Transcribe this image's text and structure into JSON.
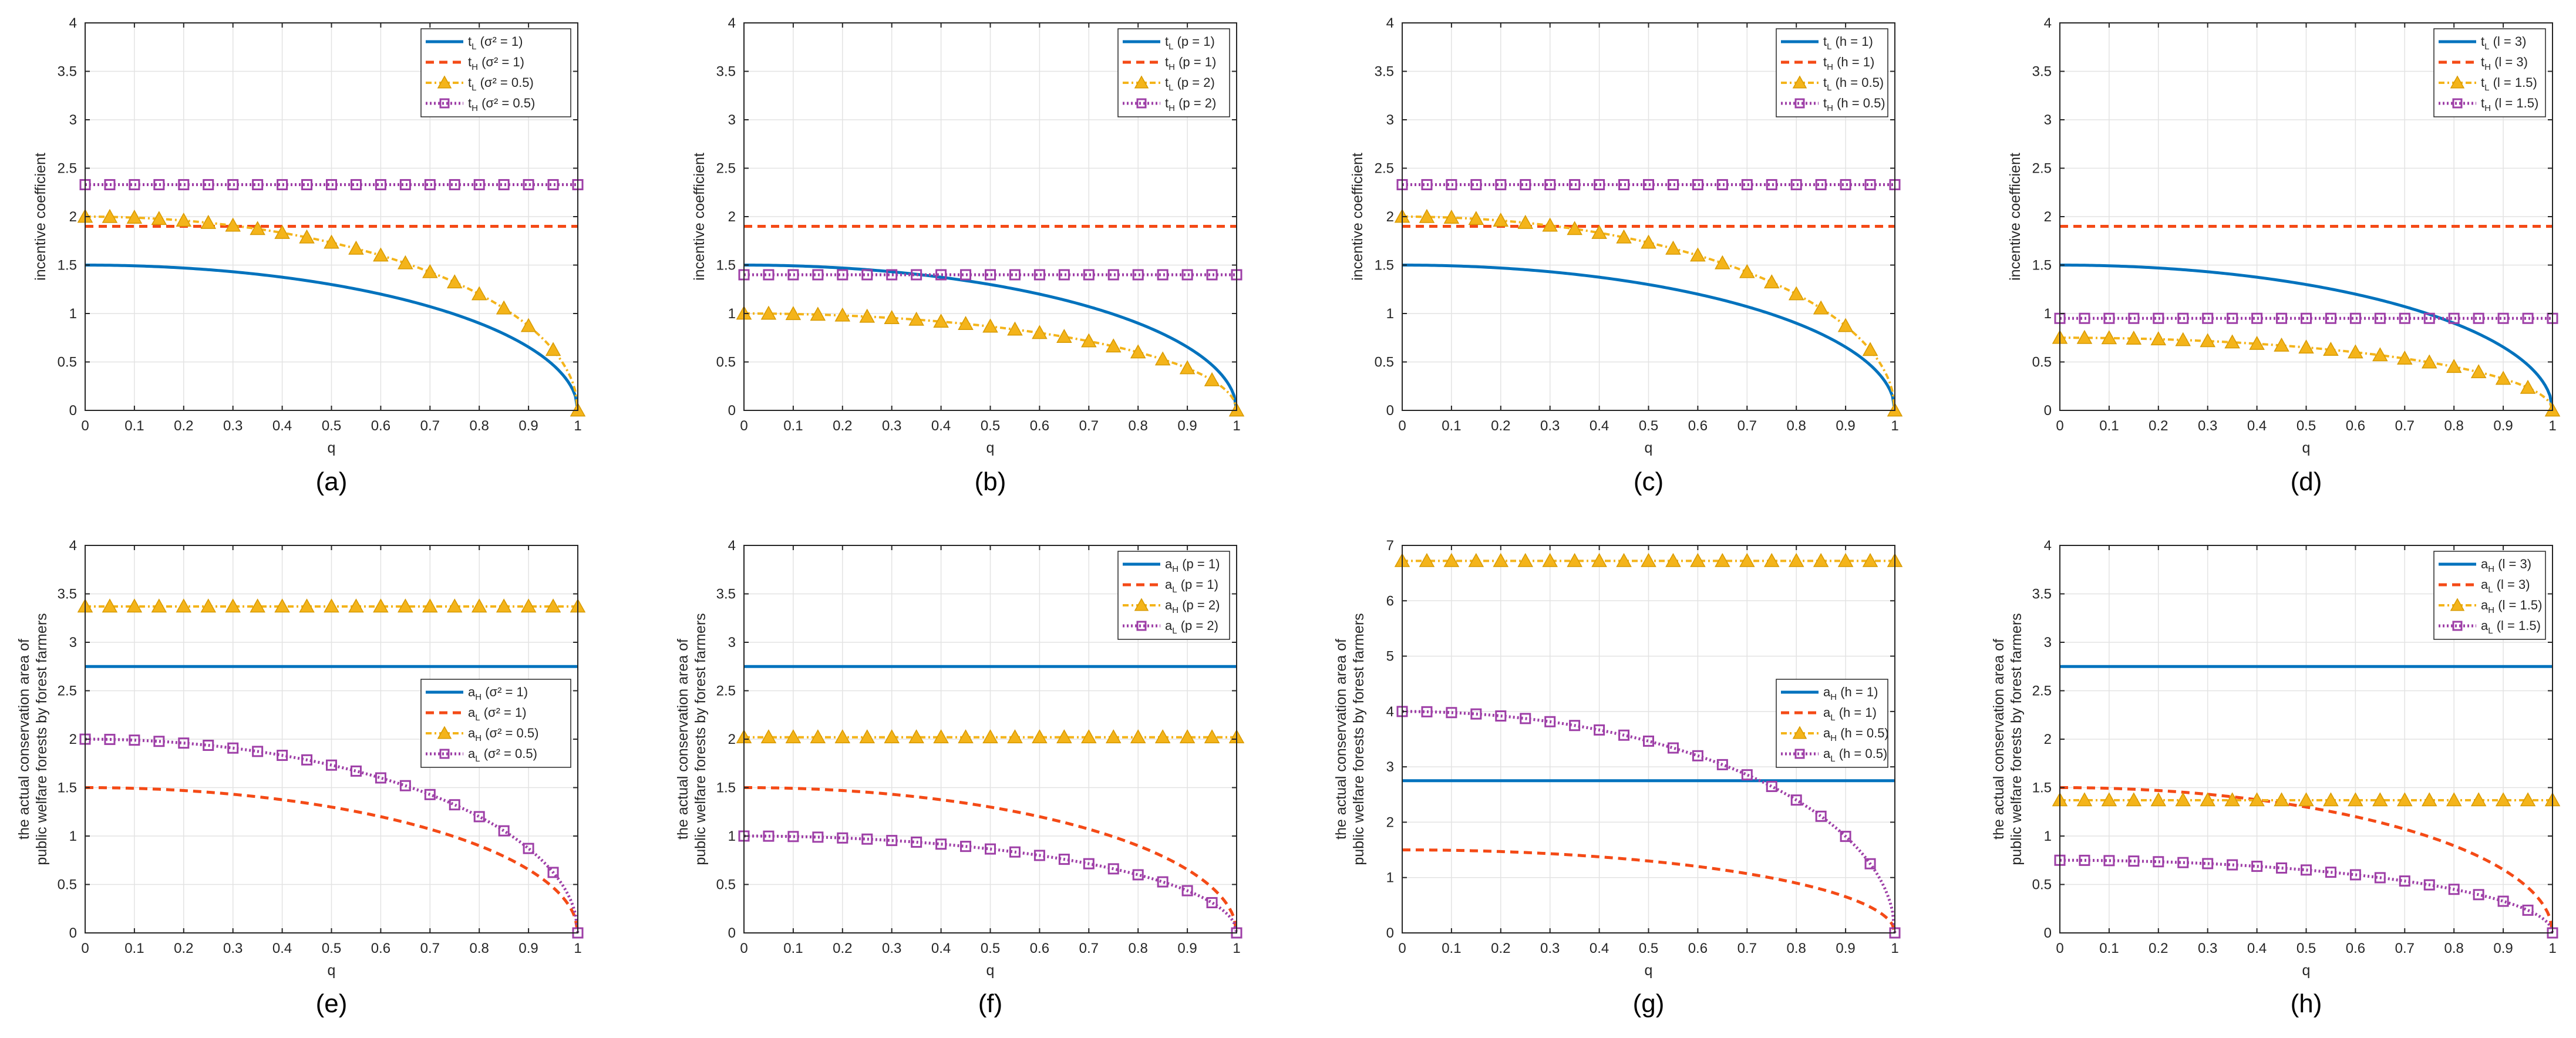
{
  "colors": {
    "blue": "#0072BD",
    "orange": "#F44A16",
    "yellow": "#F4B41A",
    "purple": "#9E3FA7",
    "grid": "#E3E3E3",
    "axis": "#262626"
  },
  "chart_data": [
    {
      "type": "line",
      "panel_label": "(a)",
      "xlabel": "q",
      "ylabel": [
        "incentive coefficient"
      ],
      "xlim": [
        0,
        1
      ],
      "ylim": [
        0,
        4
      ],
      "xticks": [
        "0",
        "0.1",
        "0.2",
        "0.3",
        "0.4",
        "0.5",
        "0.6",
        "0.7",
        "0.8",
        "0.9",
        "1"
      ],
      "yticks": [
        "0",
        "0.5",
        "1",
        "1.5",
        "2",
        "2.5",
        "3",
        "3.5",
        "4"
      ],
      "legend_position": "top-right",
      "series": [
        {
          "name": "t_L (σ² = 1)",
          "var": "t",
          "sub": "L",
          "param": "(σ² = 1)",
          "style": "solid-blue",
          "formula": "sqrt",
          "base": 1.5
        },
        {
          "name": "t_H (σ² = 1)",
          "var": "t",
          "sub": "H",
          "param": "(σ² = 1)",
          "style": "dash-orange",
          "formula": "const",
          "base": 1.9
        },
        {
          "name": "t_L (σ² = 0.5)",
          "var": "t",
          "sub": "L",
          "param": "(σ² = 0.5)",
          "style": "tri-yellow",
          "formula": "sqrt",
          "base": 2.0
        },
        {
          "name": "t_H (σ² = 0.5)",
          "var": "t",
          "sub": "H",
          "param": "(σ² = 0.5)",
          "style": "sq-purple",
          "formula": "const",
          "base": 2.33
        }
      ]
    },
    {
      "type": "line",
      "panel_label": "(b)",
      "xlabel": "q",
      "ylabel": [
        "incentive coefficient"
      ],
      "xlim": [
        0,
        1
      ],
      "ylim": [
        0,
        4
      ],
      "xticks": [
        "0",
        "0.1",
        "0.2",
        "0.3",
        "0.4",
        "0.5",
        "0.6",
        "0.7",
        "0.8",
        "0.9",
        "1"
      ],
      "yticks": [
        "0",
        "0.5",
        "1",
        "1.5",
        "2",
        "2.5",
        "3",
        "3.5",
        "4"
      ],
      "legend_position": "top-right",
      "series": [
        {
          "name": "t_L (p = 1)",
          "var": "t",
          "sub": "L",
          "param": "(p = 1)",
          "style": "solid-blue",
          "formula": "sqrt",
          "base": 1.5
        },
        {
          "name": "t_H (p = 1)",
          "var": "t",
          "sub": "H",
          "param": "(p = 1)",
          "style": "dash-orange",
          "formula": "const",
          "base": 1.9
        },
        {
          "name": "t_L (p = 2)",
          "var": "t",
          "sub": "L",
          "param": "(p = 2)",
          "style": "tri-yellow",
          "formula": "sqrt",
          "base": 1.0
        },
        {
          "name": "t_H (p = 2)",
          "var": "t",
          "sub": "H",
          "param": "(p = 2)",
          "style": "sq-purple",
          "formula": "const",
          "base": 1.4
        }
      ]
    },
    {
      "type": "line",
      "panel_label": "(c)",
      "xlabel": "q",
      "ylabel": [
        "incentive coefficient"
      ],
      "xlim": [
        0,
        1
      ],
      "ylim": [
        0,
        4
      ],
      "xticks": [
        "0",
        "0.1",
        "0.2",
        "0.3",
        "0.4",
        "0.5",
        "0.6",
        "0.7",
        "0.8",
        "0.9",
        "1"
      ],
      "yticks": [
        "0",
        "0.5",
        "1",
        "1.5",
        "2",
        "2.5",
        "3",
        "3.5",
        "4"
      ],
      "legend_position": "top-right",
      "series": [
        {
          "name": "t_L (h = 1)",
          "var": "t",
          "sub": "L",
          "param": "(h = 1)",
          "style": "solid-blue",
          "formula": "sqrt",
          "base": 1.5
        },
        {
          "name": "t_H (h = 1)",
          "var": "t",
          "sub": "H",
          "param": "(h = 1)",
          "style": "dash-orange",
          "formula": "const",
          "base": 1.9
        },
        {
          "name": "t_L (h = 0.5)",
          "var": "t",
          "sub": "L",
          "param": "(h = 0.5)",
          "style": "tri-yellow",
          "formula": "sqrt",
          "base": 2.0
        },
        {
          "name": "t_H (h = 0.5)",
          "var": "t",
          "sub": "H",
          "param": "(h = 0.5)",
          "style": "sq-purple",
          "formula": "const",
          "base": 2.33
        }
      ]
    },
    {
      "type": "line",
      "panel_label": "(d)",
      "xlabel": "q",
      "ylabel": [
        "incentive coefficient"
      ],
      "xlim": [
        0,
        1
      ],
      "ylim": [
        0,
        4
      ],
      "xticks": [
        "0",
        "0.1",
        "0.2",
        "0.3",
        "0.4",
        "0.5",
        "0.6",
        "0.7",
        "0.8",
        "0.9",
        "1"
      ],
      "yticks": [
        "0",
        "0.5",
        "1",
        "1.5",
        "2",
        "2.5",
        "3",
        "3.5",
        "4"
      ],
      "legend_position": "top-right",
      "series": [
        {
          "name": "t_L (l = 3)",
          "var": "t",
          "sub": "L",
          "param": "(l = 3)",
          "style": "solid-blue",
          "formula": "sqrt",
          "base": 1.5
        },
        {
          "name": "t_H (l = 3)",
          "var": "t",
          "sub": "H",
          "param": "(l = 3)",
          "style": "dash-orange",
          "formula": "const",
          "base": 1.9
        },
        {
          "name": "t_L (l = 1.5)",
          "var": "t",
          "sub": "L",
          "param": "(l = 1.5)",
          "style": "tri-yellow",
          "formula": "sqrt",
          "base": 0.75
        },
        {
          "name": "t_H (l = 1.5)",
          "var": "t",
          "sub": "H",
          "param": "(l = 1.5)",
          "style": "sq-purple",
          "formula": "const",
          "base": 0.95
        }
      ]
    },
    {
      "type": "line",
      "panel_label": "(e)",
      "xlabel": "q",
      "ylabel": [
        "the actual conservation area of",
        "public welfare forests by forest farmers"
      ],
      "xlim": [
        0,
        1
      ],
      "ylim": [
        0,
        4
      ],
      "xticks": [
        "0",
        "0.1",
        "0.2",
        "0.3",
        "0.4",
        "0.5",
        "0.6",
        "0.7",
        "0.8",
        "0.9",
        "1"
      ],
      "yticks": [
        "0",
        "0.5",
        "1",
        "1.5",
        "2",
        "2.5",
        "3",
        "3.5",
        "4"
      ],
      "legend_position": "middle-right",
      "series": [
        {
          "name": "a_H (σ² = 1)",
          "var": "a",
          "sub": "H",
          "param": "(σ² = 1)",
          "style": "solid-blue",
          "formula": "const",
          "base": 2.75
        },
        {
          "name": "a_L (σ² = 1)",
          "var": "a",
          "sub": "L",
          "param": "(σ² = 1)",
          "style": "dash-orange",
          "formula": "sqrt",
          "base": 1.5
        },
        {
          "name": "a_H (σ² = 0.5)",
          "var": "a",
          "sub": "H",
          "param": "(σ² = 0.5)",
          "style": "tri-yellow",
          "formula": "const",
          "base": 3.37
        },
        {
          "name": "a_L (σ² = 0.5)",
          "var": "a",
          "sub": "L",
          "param": "(σ² = 0.5)",
          "style": "sq-purple",
          "formula": "sqrt",
          "base": 2.0
        }
      ]
    },
    {
      "type": "line",
      "panel_label": "(f)",
      "xlabel": "q",
      "ylabel": [
        "the actual conservation area of",
        "public welfare forests by forest farmers"
      ],
      "xlim": [
        0,
        1
      ],
      "ylim": [
        0,
        4
      ],
      "xticks": [
        "0",
        "0.1",
        "0.2",
        "0.3",
        "0.4",
        "0.5",
        "0.6",
        "0.7",
        "0.8",
        "0.9",
        "1"
      ],
      "yticks": [
        "0",
        "0.5",
        "1",
        "1.5",
        "2",
        "2.5",
        "3",
        "3.5",
        "4"
      ],
      "legend_position": "top-right",
      "series": [
        {
          "name": "a_H (p = 1)",
          "var": "a",
          "sub": "H",
          "param": "(p = 1)",
          "style": "solid-blue",
          "formula": "const",
          "base": 2.75
        },
        {
          "name": "a_L (p = 1)",
          "var": "a",
          "sub": "L",
          "param": "(p = 1)",
          "style": "dash-orange",
          "formula": "sqrt",
          "base": 1.5
        },
        {
          "name": "a_H (p = 2)",
          "var": "a",
          "sub": "H",
          "param": "(p = 2)",
          "style": "tri-yellow",
          "formula": "const",
          "base": 2.02
        },
        {
          "name": "a_L (p = 2)",
          "var": "a",
          "sub": "L",
          "param": "(p = 2)",
          "style": "sq-purple",
          "formula": "sqrt",
          "base": 1.0
        }
      ]
    },
    {
      "type": "line",
      "panel_label": "(g)",
      "xlabel": "q",
      "ylabel": [
        "the actual conservation area of",
        "public welfare forests by forest farmers"
      ],
      "xlim": [
        0,
        1
      ],
      "ylim": [
        0,
        7
      ],
      "xticks": [
        "0",
        "0.1",
        "0.2",
        "0.3",
        "0.4",
        "0.5",
        "0.6",
        "0.7",
        "0.8",
        "0.9",
        "1"
      ],
      "yticks": [
        "0",
        "1",
        "2",
        "3",
        "4",
        "5",
        "6",
        "7"
      ],
      "legend_position": "middle-right",
      "series": [
        {
          "name": "a_H (h = 1)",
          "var": "a",
          "sub": "H",
          "param": "(h = 1)",
          "style": "solid-blue",
          "formula": "const",
          "base": 2.75
        },
        {
          "name": "a_L (h = 1)",
          "var": "a",
          "sub": "L",
          "param": "(h = 1)",
          "style": "dash-orange",
          "formula": "sqrt",
          "base": 1.5
        },
        {
          "name": "a_H (h = 0.5)",
          "var": "a",
          "sub": "H",
          "param": "(h = 0.5)",
          "style": "tri-yellow",
          "formula": "const",
          "base": 6.72
        },
        {
          "name": "a_L (h = 0.5)",
          "var": "a",
          "sub": "L",
          "param": "(h = 0.5)",
          "style": "sq-purple",
          "formula": "sqrt",
          "base": 4.0
        }
      ]
    },
    {
      "type": "line",
      "panel_label": "(h)",
      "xlabel": "q",
      "ylabel": [
        "the actual conservation area of",
        "public welfare forests by forest farmers"
      ],
      "xlim": [
        0,
        1
      ],
      "ylim": [
        0,
        4
      ],
      "xticks": [
        "0",
        "0.1",
        "0.2",
        "0.3",
        "0.4",
        "0.5",
        "0.6",
        "0.7",
        "0.8",
        "0.9",
        "1"
      ],
      "yticks": [
        "0",
        "0.5",
        "1",
        "1.5",
        "2",
        "2.5",
        "3",
        "3.5",
        "4"
      ],
      "legend_position": "top-right",
      "series": [
        {
          "name": "a_H (l = 3)",
          "var": "a",
          "sub": "H",
          "param": "(l = 3)",
          "style": "solid-blue",
          "formula": "const",
          "base": 2.75
        },
        {
          "name": "a_L (l = 3)",
          "var": "a",
          "sub": "L",
          "param": "(l = 3)",
          "style": "dash-orange",
          "formula": "sqrt",
          "base": 1.5
        },
        {
          "name": "a_H (l = 1.5)",
          "var": "a",
          "sub": "H",
          "param": "(l = 1.5)",
          "style": "tri-yellow",
          "formula": "const",
          "base": 1.37
        },
        {
          "name": "a_L (l = 1.5)",
          "var": "a",
          "sub": "L",
          "param": "(l = 1.5)",
          "style": "sq-purple",
          "formula": "sqrt",
          "base": 0.75
        }
      ]
    }
  ]
}
